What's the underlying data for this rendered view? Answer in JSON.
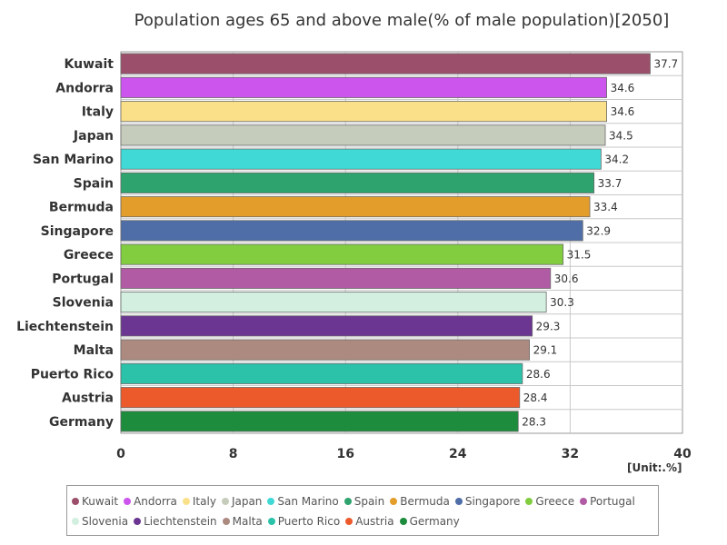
{
  "chart_data": {
    "type": "bar",
    "orientation": "horizontal",
    "title": "Population ages 65 and above male(% of male population)[2050]",
    "unit_label": "[Unit:.%]",
    "xlim": [
      0,
      40
    ],
    "x_ticks": [
      0,
      8,
      16,
      24,
      32,
      40
    ],
    "grid": true,
    "legend_position": "bottom",
    "categories": [
      "Kuwait",
      "Andorra",
      "Italy",
      "Japan",
      "San Marino",
      "Spain",
      "Bermuda",
      "Singapore",
      "Greece",
      "Portugal",
      "Slovenia",
      "Liechtenstein",
      "Malta",
      "Puerto Rico",
      "Austria",
      "Germany"
    ],
    "values": [
      37.7,
      34.6,
      34.6,
      34.5,
      34.2,
      33.7,
      33.4,
      32.9,
      31.5,
      30.6,
      30.3,
      29.3,
      29.1,
      28.6,
      28.4,
      28.3
    ],
    "colors": [
      "#9c4f6a",
      "#cc55ee",
      "#fbe08a",
      "#c6ccbc",
      "#40d9d5",
      "#2fa36e",
      "#e39d2a",
      "#4f6ea8",
      "#82cc40",
      "#b25ba5",
      "#d2efe0",
      "#6b3592",
      "#ac8a80",
      "#2cc2aa",
      "#ec5a2c",
      "#1d8c3c"
    ]
  }
}
